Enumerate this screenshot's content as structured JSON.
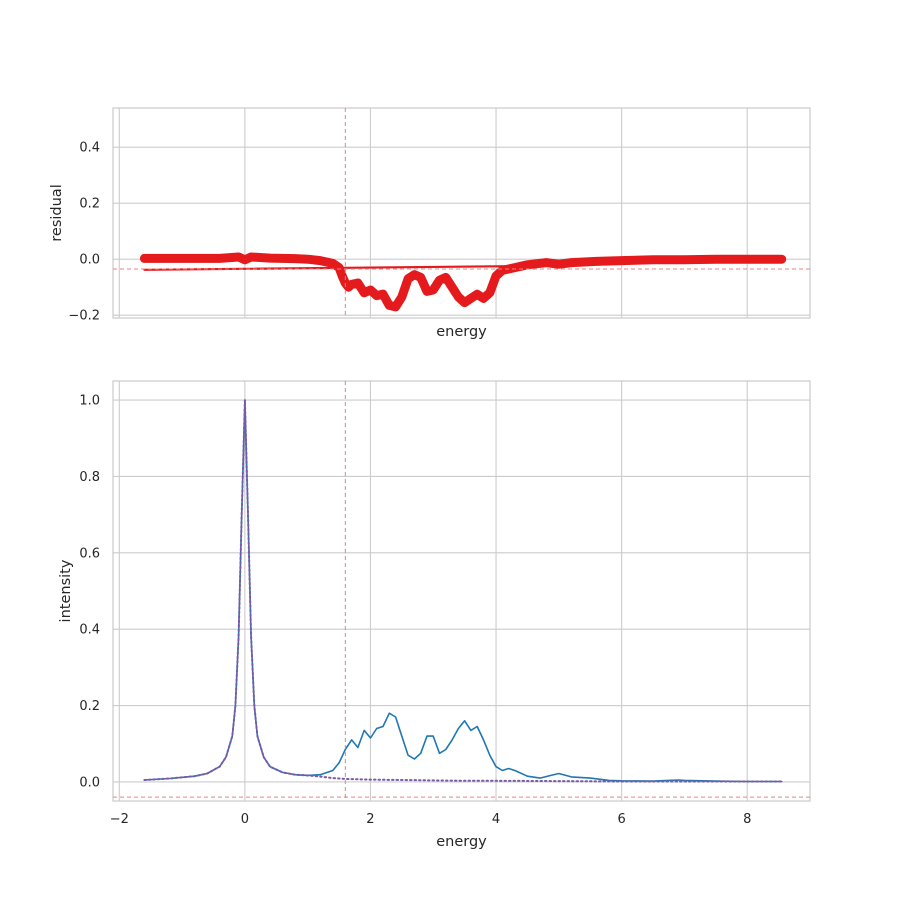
{
  "chart_data": [
    {
      "type": "scatter",
      "title": "",
      "xlabel": "energy",
      "ylabel": "residual",
      "xlim": [
        -2.1,
        9.0
      ],
      "ylim": [
        -0.21,
        0.54
      ],
      "xticks": [
        -2,
        0,
        2,
        4,
        6,
        8
      ],
      "show_x_tick_labels": false,
      "yticks": [
        -0.2,
        0.0,
        0.2,
        0.4
      ],
      "ytick_labels": [
        "−0.2",
        "0.0",
        "0.2",
        "0.4"
      ],
      "grid": true,
      "reference_lines": {
        "vertical_x": 1.6,
        "horizontal_y": -0.035,
        "color": "#f08080"
      },
      "series": [
        {
          "style": "thick-markers",
          "color": "#e41a1c",
          "x": [
            -1.6,
            -1.2,
            -0.8,
            -0.4,
            -0.1,
            0.0,
            0.1,
            0.4,
            0.8,
            1.0,
            1.2,
            1.4,
            1.5,
            1.55,
            1.6,
            1.65,
            1.7,
            1.8,
            1.9,
            2.0,
            2.1,
            2.2,
            2.3,
            2.4,
            2.5,
            2.6,
            2.7,
            2.8,
            2.9,
            3.0,
            3.1,
            3.2,
            3.3,
            3.4,
            3.5,
            3.6,
            3.7,
            3.8,
            3.9,
            4.0,
            4.1,
            4.2,
            4.3,
            4.5,
            4.8,
            5.0,
            5.2,
            5.6,
            6.0,
            6.5,
            7.0,
            7.5,
            8.0,
            8.55
          ],
          "y": [
            0.003,
            0.003,
            0.003,
            0.003,
            0.008,
            -0.002,
            0.008,
            0.004,
            0.002,
            0.0,
            -0.005,
            -0.015,
            -0.03,
            -0.06,
            -0.085,
            -0.1,
            -0.09,
            -0.085,
            -0.12,
            -0.11,
            -0.13,
            -0.125,
            -0.165,
            -0.17,
            -0.135,
            -0.07,
            -0.055,
            -0.065,
            -0.115,
            -0.11,
            -0.075,
            -0.065,
            -0.1,
            -0.135,
            -0.155,
            -0.14,
            -0.125,
            -0.14,
            -0.12,
            -0.06,
            -0.04,
            -0.035,
            -0.03,
            -0.02,
            -0.012,
            -0.018,
            -0.012,
            -0.008,
            -0.005,
            -0.002,
            -0.002,
            0.0,
            0.0,
            0.0
          ]
        },
        {
          "style": "thin-line",
          "color": "#e41a1c",
          "x": [
            -1.6,
            4.2
          ],
          "y": [
            -0.038,
            -0.025
          ]
        }
      ]
    },
    {
      "type": "line",
      "title": "",
      "xlabel": "energy",
      "ylabel": "intensity",
      "xlim": [
        -2.1,
        9.0
      ],
      "ylim": [
        -0.05,
        1.05
      ],
      "xticks": [
        -2,
        0,
        2,
        4,
        6,
        8
      ],
      "xtick_labels": [
        "−2",
        "0",
        "2",
        "4",
        "6",
        "8"
      ],
      "show_x_tick_labels": true,
      "yticks": [
        0.0,
        0.2,
        0.4,
        0.6,
        0.8,
        1.0
      ],
      "ytick_labels": [
        "0.0",
        "0.2",
        "0.4",
        "0.6",
        "0.8",
        "1.0"
      ],
      "grid": true,
      "reference_lines": {
        "vertical_x": 1.6,
        "horizontal_y": -0.04,
        "color": "#f08080"
      },
      "series": [
        {
          "style": "solid",
          "color": "#1f77b4",
          "x": [
            -1.6,
            -1.2,
            -0.8,
            -0.6,
            -0.4,
            -0.3,
            -0.2,
            -0.15,
            -0.1,
            -0.05,
            0.0,
            0.05,
            0.1,
            0.15,
            0.2,
            0.3,
            0.4,
            0.6,
            0.8,
            1.0,
            1.2,
            1.4,
            1.5,
            1.6,
            1.7,
            1.8,
            1.9,
            2.0,
            2.1,
            2.2,
            2.3,
            2.4,
            2.5,
            2.6,
            2.7,
            2.8,
            2.9,
            3.0,
            3.1,
            3.2,
            3.3,
            3.4,
            3.5,
            3.6,
            3.7,
            3.8,
            3.9,
            4.0,
            4.1,
            4.2,
            4.3,
            4.5,
            4.7,
            4.9,
            5.0,
            5.2,
            5.5,
            5.8,
            6.0,
            6.5,
            6.9,
            7.0,
            7.5,
            8.0,
            8.55
          ],
          "y": [
            0.005,
            0.009,
            0.015,
            0.022,
            0.04,
            0.065,
            0.12,
            0.2,
            0.38,
            0.7,
            1.0,
            0.7,
            0.38,
            0.2,
            0.12,
            0.065,
            0.04,
            0.025,
            0.019,
            0.017,
            0.019,
            0.03,
            0.05,
            0.085,
            0.11,
            0.09,
            0.135,
            0.115,
            0.14,
            0.145,
            0.18,
            0.17,
            0.12,
            0.07,
            0.06,
            0.075,
            0.12,
            0.12,
            0.075,
            0.085,
            0.11,
            0.14,
            0.16,
            0.135,
            0.145,
            0.11,
            0.07,
            0.04,
            0.03,
            0.035,
            0.03,
            0.015,
            0.01,
            0.018,
            0.022,
            0.013,
            0.01,
            0.004,
            0.003,
            0.002,
            0.005,
            0.004,
            0.002,
            0.001,
            0.001
          ]
        },
        {
          "style": "dotted",
          "color": "#7b5aa6",
          "x": [
            -1.6,
            -1.2,
            -0.8,
            -0.6,
            -0.4,
            -0.3,
            -0.2,
            -0.15,
            -0.1,
            -0.05,
            0.0,
            0.05,
            0.1,
            0.15,
            0.2,
            0.3,
            0.4,
            0.6,
            0.8,
            1.0,
            1.2,
            1.4,
            1.6,
            2.0,
            2.5,
            3.0,
            3.5,
            4.0,
            5.0,
            6.0,
            7.0,
            8.0,
            8.55
          ],
          "y": [
            0.005,
            0.009,
            0.015,
            0.022,
            0.04,
            0.065,
            0.12,
            0.2,
            0.38,
            0.7,
            1.0,
            0.7,
            0.38,
            0.2,
            0.12,
            0.065,
            0.04,
            0.025,
            0.019,
            0.017,
            0.014,
            0.01,
            0.008,
            0.006,
            0.005,
            0.004,
            0.003,
            0.003,
            0.002,
            0.001,
            0.001,
            0.001,
            0.001
          ]
        }
      ]
    }
  ]
}
